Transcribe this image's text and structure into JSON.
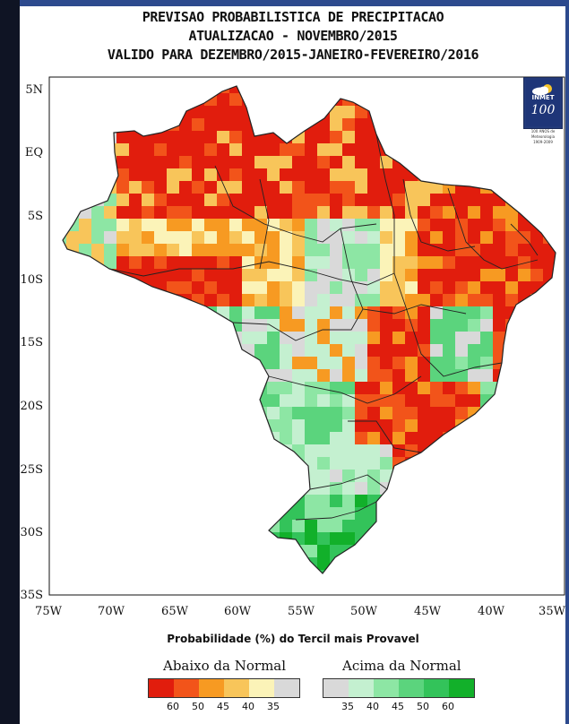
{
  "titles": {
    "line1": "PREVISAO PROBABILISTICA DE PRECIPITACAO",
    "line2": "ATUALIZACAO - NOVEMBRO/2015",
    "line3": "VALIDO PARA DEZEMBRO/2015-JANEIRO-FEVEREIRO/2016"
  },
  "logo": {
    "name": "INMET",
    "number": "100",
    "subtitle": [
      "100 ANOS de",
      "Meteorologia",
      "1909-2009"
    ],
    "icon": "cloud-sun-icon"
  },
  "map": {
    "lat_labels": [
      "5N",
      "EQ",
      "5S",
      "10S",
      "15S",
      "20S",
      "25S",
      "30S",
      "35S"
    ],
    "lon_labels": [
      "75W",
      "70W",
      "65W",
      "60W",
      "55W",
      "50W",
      "45W",
      "40W",
      "35W"
    ],
    "x_axis_title": "Probabilidade (%) do Tercil mais Provavel",
    "palette": {
      "below_60": "#e11d0d",
      "below_50": "#f2541a",
      "below_45": "#f79a22",
      "below_40": "#f8c55a",
      "below_35": "#fbf3b8",
      "normal": "#d9d9d9",
      "above_35": "#c4f0d0",
      "above_40": "#8de6a4",
      "above_45": "#5bd47d",
      "above_50": "#33c35a",
      "above_60": "#12b02a"
    },
    "regions": [
      {
        "name": "north-amazon",
        "category": "below_50"
      },
      {
        "name": "northeast-coast",
        "category": "below_60"
      },
      {
        "name": "central-west",
        "category": "below_35"
      },
      {
        "name": "southeast-interior",
        "category": "above_40"
      },
      {
        "name": "south",
        "category": "above_50"
      }
    ]
  },
  "legend": {
    "below_title": "Abaixo da Normal",
    "above_title": "Acima da Normal",
    "below_colors": [
      "#e11d0d",
      "#f2541a",
      "#f79a22",
      "#f8c55a",
      "#fbf3b8",
      "#d9d9d9"
    ],
    "above_colors": [
      "#d9d9d9",
      "#c4f0d0",
      "#8de6a4",
      "#5bd47d",
      "#33c35a",
      "#12b02a"
    ],
    "below_ticks": [
      "60",
      "50",
      "45",
      "40",
      "35"
    ],
    "above_ticks": [
      "35",
      "40",
      "45",
      "50",
      "60"
    ]
  }
}
